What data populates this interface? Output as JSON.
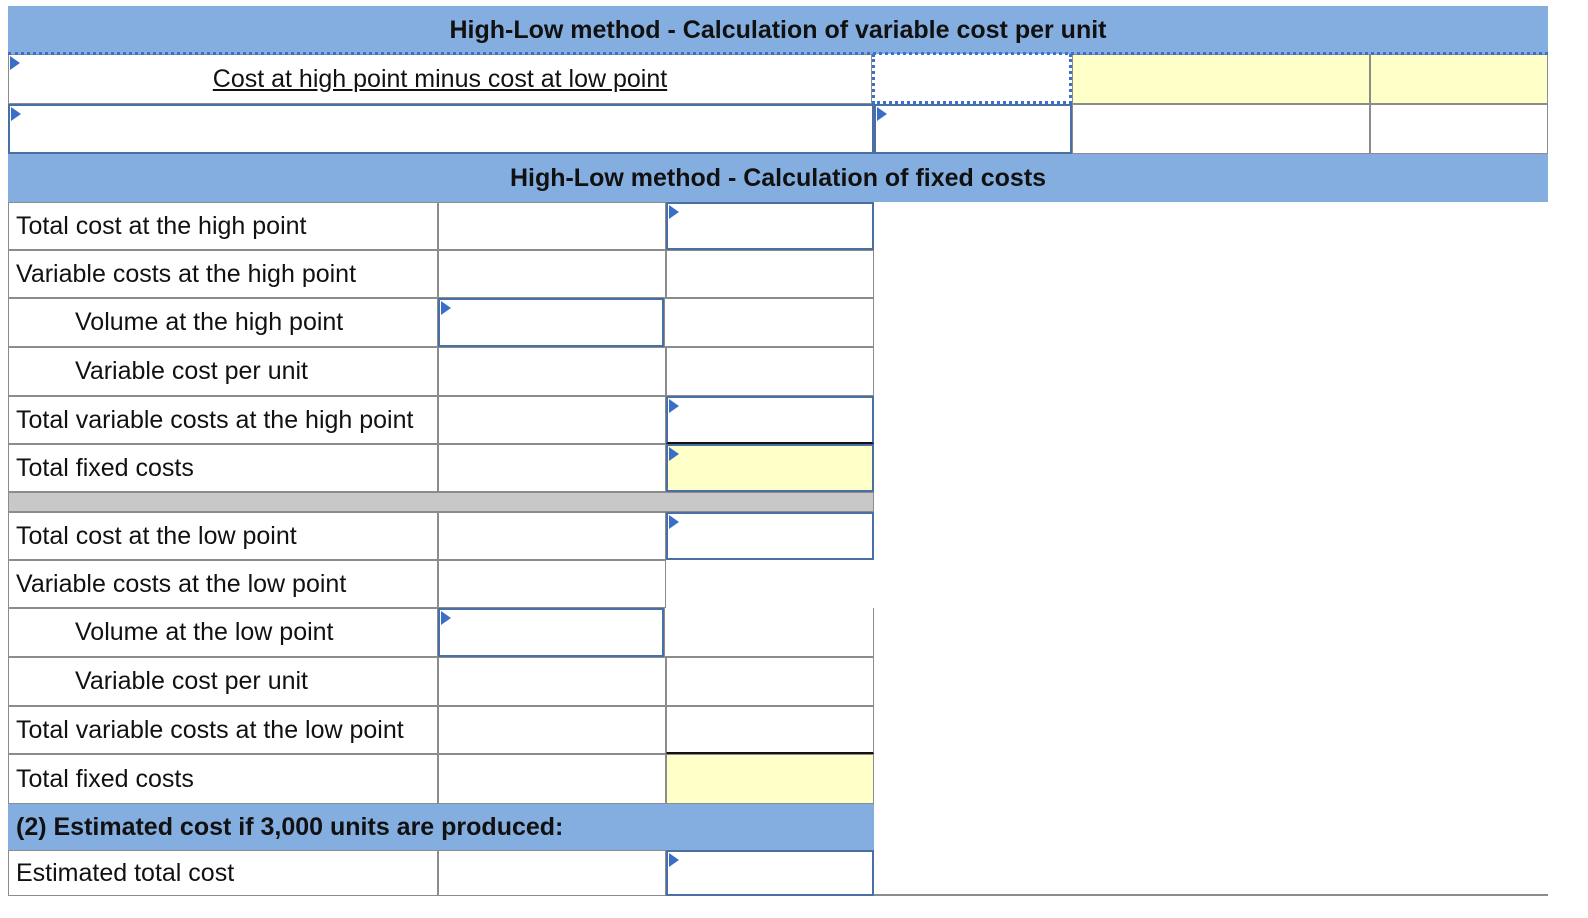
{
  "section1": {
    "header": "High-Low method - Calculation of variable cost per unit",
    "row1_label": "Cost at high point minus cost at low point"
  },
  "section2": {
    "header": "High-Low method - Calculation of fixed costs",
    "high": {
      "total_cost": "Total cost at the high point",
      "variable_costs": "Variable costs at the high point",
      "volume": "Volume at the high point",
      "vc_per_unit": "Variable cost per unit",
      "total_variable": "Total variable costs at the high point",
      "total_fixed": "Total fixed costs"
    },
    "low": {
      "total_cost": "Total cost at the low point",
      "variable_costs": "Variable costs at the low point",
      "volume": "Volume at the low point",
      "vc_per_unit": "Variable cost per unit",
      "total_variable": "Total variable costs at the low point",
      "total_fixed": "Total fixed costs"
    }
  },
  "section3": {
    "header": "(2) Estimated cost if 3,000 units are produced:",
    "estimated_total": "Estimated total cost"
  },
  "colors": {
    "header_bg": "#84aee0",
    "highlight_yellow": "#ffffc8",
    "input_border": "#4a6fa5",
    "marker": "#3a6fc8",
    "separator": "#c8c8c8"
  }
}
